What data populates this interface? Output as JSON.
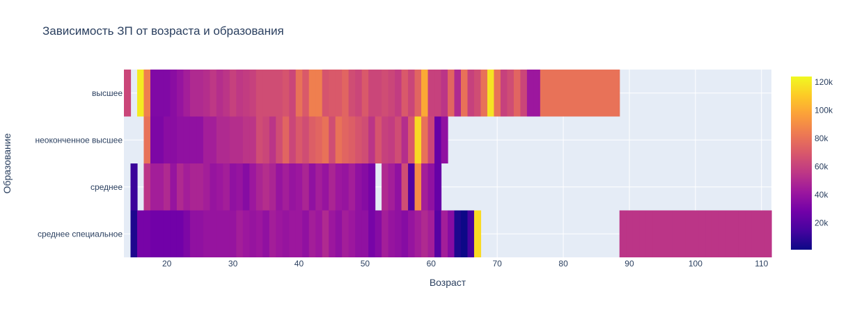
{
  "chart_data": {
    "type": "heatmap",
    "title": "Зависимость ЗП от возраста и образования",
    "xlabel": "Возраст",
    "ylabel": "Образование",
    "categories": [
      "высшее",
      "неоконченное высшее",
      "среднее",
      "среднее специальное"
    ],
    "xlim": [
      13.5,
      111.5
    ],
    "x_ticks": [
      20,
      30,
      40,
      50,
      60,
      70,
      80,
      90,
      100,
      110
    ],
    "colorbar": {
      "min": 1000,
      "max": 124000,
      "ticks": [
        20000,
        40000,
        60000,
        80000,
        100000,
        120000
      ],
      "tick_labels": [
        "20k",
        "40k",
        "60k",
        "80k",
        "100k",
        "120k"
      ]
    },
    "colorscale": [
      "#0d0887",
      "#46039f",
      "#7201a8",
      "#9c179e",
      "#bd3786",
      "#d8576b",
      "#ed7953",
      "#fb9f3a",
      "#fdca26",
      "#f0f921"
    ],
    "grid": true,
    "series": [
      {
        "values": [
          [
            14,
            62000
          ],
          [
            16,
            120000
          ],
          [
            17,
            85000
          ],
          [
            18,
            33000
          ],
          [
            19,
            33000
          ],
          [
            20,
            33000
          ],
          [
            21,
            36000
          ],
          [
            22,
            40000
          ],
          [
            23,
            45000
          ],
          [
            24,
            50000
          ],
          [
            25,
            50000
          ],
          [
            26,
            52000
          ],
          [
            27,
            56000
          ],
          [
            28,
            52000
          ],
          [
            29,
            55000
          ],
          [
            30,
            60000
          ],
          [
            31,
            56000
          ],
          [
            32,
            58000
          ],
          [
            33,
            60000
          ],
          [
            34,
            65000
          ],
          [
            35,
            65000
          ],
          [
            36,
            65000
          ],
          [
            37,
            65000
          ],
          [
            38,
            68000
          ],
          [
            39,
            62000
          ],
          [
            40,
            80000
          ],
          [
            41,
            70000
          ],
          [
            42,
            85000
          ],
          [
            43,
            85000
          ],
          [
            44,
            68000
          ],
          [
            45,
            70000
          ],
          [
            46,
            70000
          ],
          [
            47,
            75000
          ],
          [
            48,
            65000
          ],
          [
            49,
            62000
          ],
          [
            50,
            70000
          ],
          [
            51,
            62000
          ],
          [
            52,
            62000
          ],
          [
            53,
            65000
          ],
          [
            54,
            62000
          ],
          [
            55,
            58000
          ],
          [
            56,
            70000
          ],
          [
            57,
            62000
          ],
          [
            58,
            75000
          ],
          [
            59,
            100000
          ],
          [
            60,
            60000
          ],
          [
            61,
            60000
          ],
          [
            62,
            55000
          ],
          [
            63,
            75000
          ],
          [
            64,
            50000
          ],
          [
            65,
            80000
          ],
          [
            66,
            60000
          ],
          [
            67,
            65000
          ],
          [
            68,
            80000
          ],
          [
            69,
            118000
          ],
          [
            70,
            80000
          ],
          [
            71,
            60000
          ],
          [
            72,
            65000
          ],
          [
            73,
            75000
          ],
          [
            74,
            62000
          ],
          [
            75,
            42000
          ],
          [
            76,
            42000
          ],
          [
            77,
            80000
          ],
          [
            78,
            80000
          ],
          [
            79,
            80000
          ],
          [
            80,
            80000
          ],
          [
            81,
            80000
          ],
          [
            82,
            80000
          ],
          [
            83,
            80000
          ],
          [
            84,
            80000
          ],
          [
            85,
            80000
          ],
          [
            86,
            80000
          ],
          [
            87,
            80000
          ],
          [
            88,
            80000
          ]
        ]
      },
      {
        "values": [
          [
            17,
            80000
          ],
          [
            18,
            32000
          ],
          [
            19,
            32000
          ],
          [
            20,
            36000
          ],
          [
            21,
            36000
          ],
          [
            22,
            38000
          ],
          [
            23,
            38000
          ],
          [
            24,
            38000
          ],
          [
            25,
            38000
          ],
          [
            26,
            45000
          ],
          [
            27,
            45000
          ],
          [
            28,
            50000
          ],
          [
            29,
            50000
          ],
          [
            30,
            52000
          ],
          [
            31,
            52000
          ],
          [
            32,
            55000
          ],
          [
            33,
            55000
          ],
          [
            34,
            65000
          ],
          [
            35,
            62000
          ],
          [
            36,
            55000
          ],
          [
            37,
            65000
          ],
          [
            38,
            75000
          ],
          [
            39,
            62000
          ],
          [
            40,
            70000
          ],
          [
            41,
            65000
          ],
          [
            42,
            72000
          ],
          [
            43,
            75000
          ],
          [
            44,
            80000
          ],
          [
            45,
            65000
          ],
          [
            46,
            80000
          ],
          [
            47,
            75000
          ],
          [
            48,
            72000
          ],
          [
            49,
            68000
          ],
          [
            50,
            65000
          ],
          [
            51,
            55000
          ],
          [
            52,
            68000
          ],
          [
            53,
            60000
          ],
          [
            54,
            58000
          ],
          [
            55,
            65000
          ],
          [
            56,
            52000
          ],
          [
            57,
            70000
          ],
          [
            58,
            115000
          ],
          [
            59,
            80000
          ],
          [
            60,
            62000
          ],
          [
            61,
            25000
          ],
          [
            62,
            38000
          ]
        ]
      },
      {
        "values": [
          [
            15,
            12000
          ],
          [
            17,
            55000
          ],
          [
            18,
            45000
          ],
          [
            19,
            45000
          ],
          [
            20,
            50000
          ],
          [
            21,
            40000
          ],
          [
            22,
            50000
          ],
          [
            23,
            45000
          ],
          [
            24,
            48000
          ],
          [
            25,
            48000
          ],
          [
            26,
            45000
          ],
          [
            27,
            40000
          ],
          [
            28,
            42000
          ],
          [
            29,
            45000
          ],
          [
            30,
            38000
          ],
          [
            31,
            40000
          ],
          [
            32,
            35000
          ],
          [
            33,
            42000
          ],
          [
            34,
            48000
          ],
          [
            35,
            52000
          ],
          [
            36,
            48000
          ],
          [
            37,
            40000
          ],
          [
            38,
            45000
          ],
          [
            39,
            40000
          ],
          [
            40,
            42000
          ],
          [
            41,
            48000
          ],
          [
            42,
            38000
          ],
          [
            43,
            45000
          ],
          [
            44,
            40000
          ],
          [
            45,
            48000
          ],
          [
            46,
            42000
          ],
          [
            47,
            40000
          ],
          [
            48,
            45000
          ],
          [
            49,
            38000
          ],
          [
            50,
            35000
          ],
          [
            51,
            30000
          ],
          [
            53,
            50000
          ],
          [
            54,
            45000
          ],
          [
            55,
            38000
          ],
          [
            56,
            65000
          ],
          [
            57,
            18000
          ],
          [
            58,
            90000
          ],
          [
            59,
            45000
          ],
          [
            60,
            38000
          ],
          [
            61,
            25000
          ]
        ]
      },
      {
        "values": [
          [
            15,
            5000
          ],
          [
            16,
            30000
          ],
          [
            17,
            30000
          ],
          [
            18,
            28000
          ],
          [
            19,
            28000
          ],
          [
            20,
            28000
          ],
          [
            21,
            28000
          ],
          [
            22,
            28000
          ],
          [
            23,
            32000
          ],
          [
            24,
            38000
          ],
          [
            25,
            38000
          ],
          [
            26,
            40000
          ],
          [
            27,
            40000
          ],
          [
            28,
            40000
          ],
          [
            29,
            40000
          ],
          [
            30,
            40000
          ],
          [
            31,
            45000
          ],
          [
            32,
            42000
          ],
          [
            33,
            40000
          ],
          [
            34,
            42000
          ],
          [
            35,
            38000
          ],
          [
            36,
            45000
          ],
          [
            37,
            42000
          ],
          [
            38,
            40000
          ],
          [
            39,
            42000
          ],
          [
            40,
            42000
          ],
          [
            41,
            38000
          ],
          [
            42,
            45000
          ],
          [
            43,
            42000
          ],
          [
            44,
            50000
          ],
          [
            45,
            42000
          ],
          [
            46,
            38000
          ],
          [
            47,
            45000
          ],
          [
            48,
            42000
          ],
          [
            49,
            38000
          ],
          [
            50,
            38000
          ],
          [
            51,
            30000
          ],
          [
            52,
            35000
          ],
          [
            53,
            45000
          ],
          [
            54,
            40000
          ],
          [
            55,
            38000
          ],
          [
            56,
            35000
          ],
          [
            57,
            40000
          ],
          [
            58,
            45000
          ],
          [
            59,
            50000
          ],
          [
            60,
            45000
          ],
          [
            61,
            20000
          ],
          [
            62,
            45000
          ],
          [
            63,
            35000
          ],
          [
            64,
            5000
          ],
          [
            65,
            1000
          ],
          [
            66,
            15000
          ],
          [
            67,
            115000
          ],
          [
            89,
            55000
          ],
          [
            90,
            55000
          ],
          [
            91,
            55000
          ],
          [
            92,
            55000
          ],
          [
            93,
            55000
          ],
          [
            94,
            55000
          ],
          [
            95,
            55000
          ],
          [
            96,
            55000
          ],
          [
            97,
            55000
          ],
          [
            98,
            55000
          ],
          [
            99,
            55000
          ],
          [
            100,
            55000
          ],
          [
            101,
            55000
          ],
          [
            102,
            55000
          ],
          [
            103,
            55000
          ],
          [
            104,
            55000
          ],
          [
            105,
            55000
          ],
          [
            106,
            55000
          ],
          [
            107,
            55000
          ],
          [
            108,
            55000
          ],
          [
            109,
            55000
          ],
          [
            110,
            55000
          ],
          [
            111,
            55000
          ]
        ]
      }
    ]
  }
}
